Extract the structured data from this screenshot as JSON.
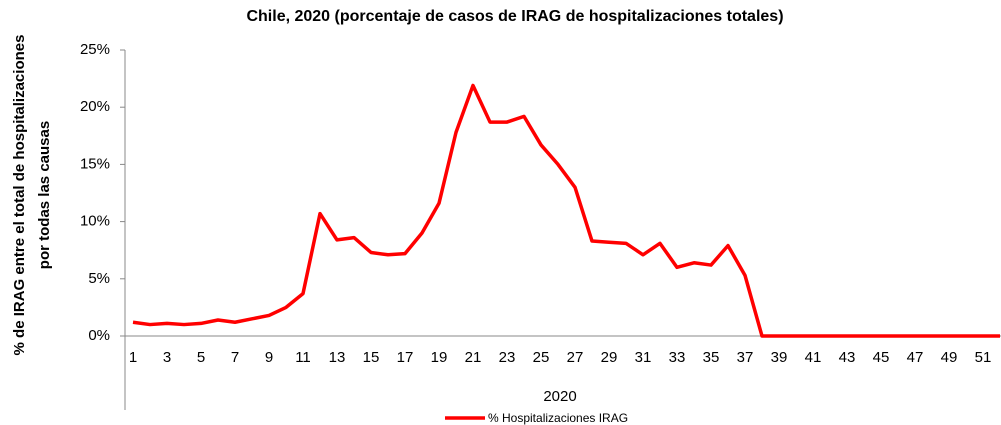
{
  "chart_data": {
    "type": "line",
    "title": "Chile, 2020 (porcentaje de casos de IRAG de hospitalizaciones totales)",
    "y_label_lines": [
      "% de IRAG entre el total de hospitalizaciones",
      "por todas las causas"
    ],
    "x_label": "2020",
    "categories": [
      "1",
      null,
      "3",
      null,
      "5",
      null,
      "7",
      null,
      "9",
      null,
      "11",
      null,
      "13",
      null,
      "15",
      null,
      "17",
      null,
      "19",
      null,
      "21",
      null,
      "23",
      null,
      "25",
      null,
      "27",
      null,
      "29",
      null,
      "31",
      null,
      "33",
      null,
      "35",
      null,
      "37",
      null,
      "39",
      null,
      "41",
      null,
      "43",
      null,
      "45",
      null,
      "47",
      null,
      "49",
      null,
      "51",
      null
    ],
    "series": [
      {
        "name": "% Hospitalizaciones IRAG",
        "color": "#ff0000",
        "values": [
          1.2,
          1.0,
          1.1,
          1.0,
          1.1,
          1.4,
          1.2,
          1.5,
          1.8,
          2.5,
          3.7,
          10.7,
          8.4,
          8.6,
          7.3,
          7.1,
          7.2,
          9.0,
          11.6,
          17.8,
          21.9,
          18.7,
          18.7,
          19.2,
          16.7,
          15.0,
          13.0,
          8.3,
          8.2,
          8.1,
          7.1,
          8.1,
          6.0,
          6.4,
          6.2,
          7.9,
          5.3,
          0,
          0,
          0,
          0,
          0,
          0,
          0,
          0,
          0,
          0,
          0,
          0,
          0,
          0,
          0
        ]
      }
    ],
    "ylim": [
      0,
      25
    ],
    "yticks": [
      {
        "value": 0,
        "label": "0%"
      },
      {
        "value": 5,
        "label": "5%"
      },
      {
        "value": 10,
        "label": "10%"
      },
      {
        "value": 15,
        "label": "15%"
      },
      {
        "value": 20,
        "label": "20%"
      },
      {
        "value": 25,
        "label": "25%"
      }
    ],
    "legend": "bottom"
  }
}
